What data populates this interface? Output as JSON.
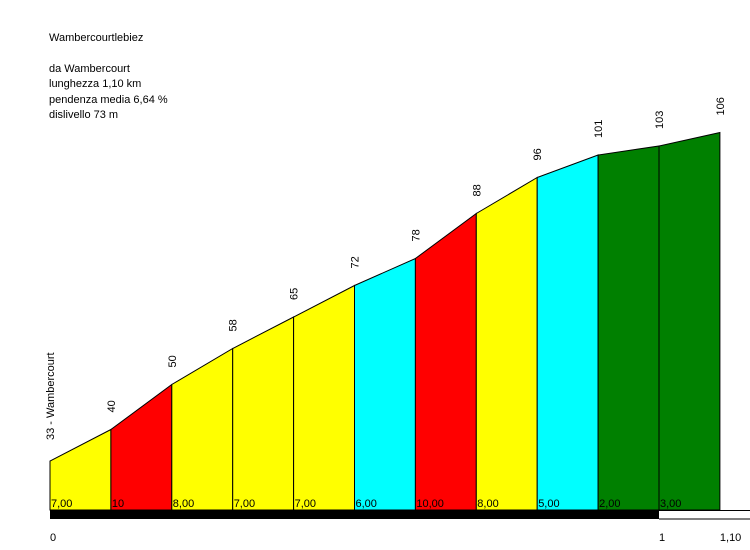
{
  "info": {
    "title": "Wambercourtlebiez",
    "start": "da Wambercourt",
    "length": "lunghezza 1,10 km",
    "avg_gradient": "pendenza media 6,64 %",
    "elevation_gain": "dislivello 73 m"
  },
  "chart_data": {
    "type": "area",
    "xlabel": "",
    "ylabel": "",
    "x_ticks": [
      "0",
      "1",
      "1,10"
    ],
    "x_tick_values": [
      0,
      1.0,
      1.1
    ],
    "start_label": "33 - Wambercourt",
    "distance_km": [
      0,
      0.1,
      0.2,
      0.3,
      0.4,
      0.5,
      0.6,
      0.7,
      0.8,
      0.9,
      1.0,
      1.1
    ],
    "elevation_m": [
      33,
      40,
      50,
      58,
      65,
      72,
      78,
      88,
      96,
      101,
      103,
      106
    ],
    "elevation_labels": [
      "40",
      "50",
      "58",
      "65",
      "72",
      "78",
      "88",
      "96",
      "101",
      "103",
      "106"
    ],
    "gradients": [
      "7,00",
      "10",
      "8,00",
      "7,00",
      "7,00",
      "6,00",
      "10,00",
      "8,00",
      "5,00",
      "2,00",
      "3,00"
    ],
    "segment_colors": [
      "#ffff00",
      "#ff0000",
      "#ffff00",
      "#ffff00",
      "#ffff00",
      "#00ffff",
      "#ff0000",
      "#ffff00",
      "#00ffff",
      "#008000",
      "#008000"
    ]
  }
}
